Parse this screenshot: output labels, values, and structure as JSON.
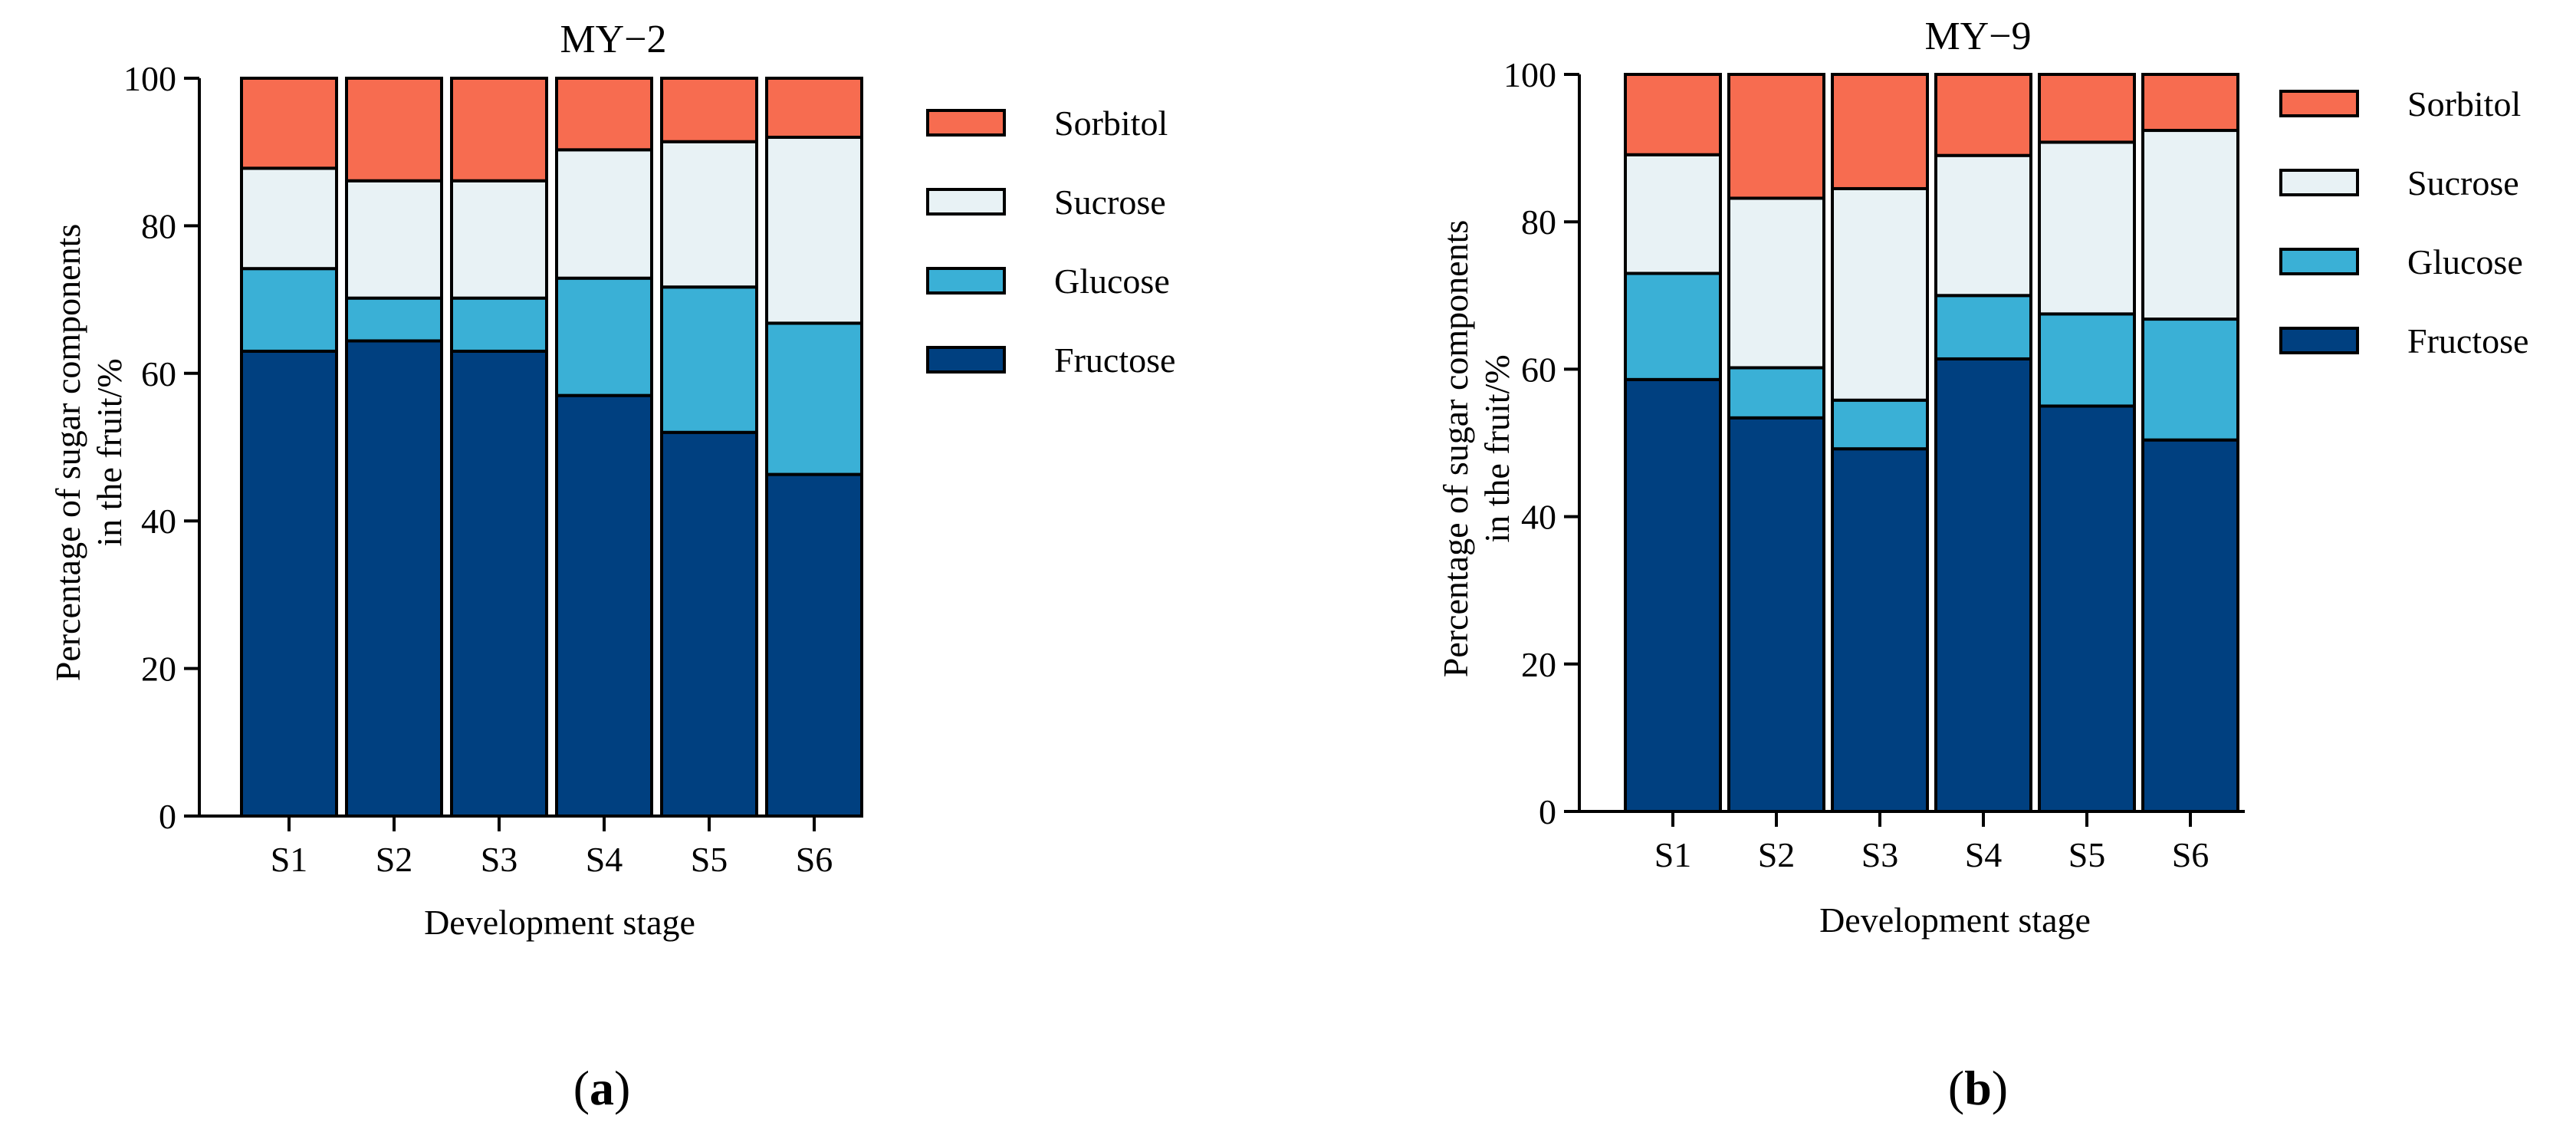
{
  "figure": {
    "colors": {
      "Fructose": "#004080",
      "Glucose": "#3ab0d6",
      "Sucrose": "#e8f2f5",
      "Sorbitol": "#f76c50"
    },
    "captions": [
      {
        "prefix": "(",
        "letter": "a",
        "suffix": ")"
      },
      {
        "prefix": "(",
        "letter": "b",
        "suffix": ")"
      }
    ]
  },
  "chart_data": [
    {
      "type": "bar",
      "stacked": true,
      "title": "MY−2",
      "xlabel": "Development stage",
      "ylabel_lines": [
        "Percentage of sugar components",
        "in the fruit/%"
      ],
      "categories": [
        "S1",
        "S2",
        "S3",
        "S4",
        "S5",
        "S6"
      ],
      "ylim": [
        0,
        100
      ],
      "yticks": [
        0,
        20,
        40,
        60,
        80,
        100
      ],
      "legend_order": [
        "Sorbitol",
        "Sucrose",
        "Glucose",
        "Fructose"
      ],
      "series": [
        {
          "name": "Fructose",
          "values": [
            63,
            64.4,
            63,
            57,
            52,
            46.3
          ]
        },
        {
          "name": "Glucose",
          "values": [
            11.2,
            5.8,
            7.2,
            15.9,
            19.7,
            20.5
          ]
        },
        {
          "name": "Sucrose",
          "values": [
            13.6,
            15.9,
            15.9,
            17.4,
            19.7,
            25.2
          ]
        },
        {
          "name": "Sorbitol",
          "values": [
            12.2,
            13.9,
            13.9,
            9.7,
            8.6,
            8
          ]
        }
      ]
    },
    {
      "type": "bar",
      "stacked": true,
      "title": "MY−9",
      "xlabel": "Development stage",
      "ylabel_lines": [
        "Percentage of sugar components",
        "in the fruit/%"
      ],
      "categories": [
        "S1",
        "S2",
        "S3",
        "S4",
        "S5",
        "S6"
      ],
      "ylim": [
        0,
        100
      ],
      "yticks": [
        0,
        20,
        40,
        60,
        80,
        100
      ],
      "legend_order": [
        "Sorbitol",
        "Sucrose",
        "Glucose",
        "Fructose"
      ],
      "series": [
        {
          "name": "Fructose",
          "values": [
            58.6,
            53.4,
            49.2,
            61.4,
            55,
            50.4
          ]
        },
        {
          "name": "Glucose",
          "values": [
            14.4,
            6.8,
            6.6,
            8.6,
            12.5,
            16.4
          ]
        },
        {
          "name": "Sucrose",
          "values": [
            16.1,
            23,
            28.7,
            19,
            23.3,
            25.6
          ]
        },
        {
          "name": "Sorbitol",
          "values": [
            10.9,
            16.8,
            15.5,
            11,
            9.2,
            7.6
          ]
        }
      ]
    }
  ]
}
